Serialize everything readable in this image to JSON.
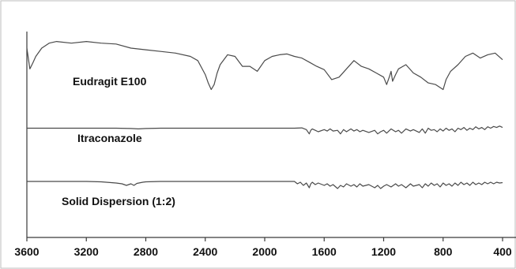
{
  "chart_data": {
    "type": "line",
    "title": "",
    "xlabel": "",
    "ylabel": "",
    "x_reversed": true,
    "xlim": [
      3600,
      400
    ],
    "x_ticks": [
      3600,
      3200,
      2800,
      2400,
      2000,
      1600,
      1200,
      800,
      400
    ],
    "grid": false,
    "legend": "none",
    "series": [
      {
        "name": "Eudragit E100",
        "x": [
          3600,
          3580,
          3560,
          3540,
          3500,
          3450,
          3400,
          3300,
          3200,
          3100,
          3000,
          2900,
          2800,
          2700,
          2600,
          2500,
          2450,
          2400,
          2380,
          2360,
          2340,
          2320,
          2300,
          2250,
          2200,
          2150,
          2100,
          2050,
          2000,
          1950,
          1900,
          1850,
          1800,
          1750,
          1700,
          1650,
          1600,
          1550,
          1500,
          1450,
          1400,
          1350,
          1300,
          1250,
          1200,
          1180,
          1160,
          1150,
          1140,
          1120,
          1100,
          1050,
          1000,
          950,
          900,
          850,
          800,
          780,
          750,
          700,
          650,
          600,
          550,
          500,
          450,
          400
        ],
        "y": [
          0.8,
          0.55,
          0.62,
          0.7,
          0.8,
          0.86,
          0.88,
          0.86,
          0.88,
          0.86,
          0.85,
          0.8,
          0.78,
          0.76,
          0.74,
          0.7,
          0.65,
          0.48,
          0.38,
          0.3,
          0.36,
          0.5,
          0.6,
          0.72,
          0.7,
          0.58,
          0.58,
          0.52,
          0.65,
          0.7,
          0.72,
          0.73,
          0.7,
          0.68,
          0.63,
          0.58,
          0.54,
          0.42,
          0.45,
          0.55,
          0.65,
          0.58,
          0.55,
          0.5,
          0.45,
          0.36,
          0.46,
          0.52,
          0.4,
          0.48,
          0.55,
          0.6,
          0.5,
          0.45,
          0.38,
          0.36,
          0.3,
          0.42,
          0.52,
          0.6,
          0.7,
          0.74,
          0.68,
          0.72,
          0.74,
          0.66
        ]
      },
      {
        "name": "Itraconazole",
        "x": [
          3600,
          3400,
          3200,
          3000,
          2900,
          2850,
          2800,
          2700,
          2600,
          2400,
          2200,
          2000,
          1800,
          1750,
          1720,
          1700,
          1690,
          1680,
          1660,
          1640,
          1600,
          1580,
          1560,
          1540,
          1510,
          1490,
          1470,
          1450,
          1420,
          1400,
          1380,
          1360,
          1340,
          1300,
          1260,
          1240,
          1220,
          1200,
          1180,
          1150,
          1120,
          1100,
          1080,
          1050,
          1020,
          1000,
          960,
          940,
          920,
          900,
          880,
          860,
          840,
          820,
          800,
          780,
          760,
          740,
          720,
          700,
          680,
          660,
          640,
          620,
          600,
          580,
          560,
          540,
          520,
          500,
          480,
          460,
          440,
          420,
          400
        ],
        "y": [
          0.5,
          0.5,
          0.5,
          0.5,
          0.49,
          0.48,
          0.49,
          0.5,
          0.5,
          0.5,
          0.5,
          0.5,
          0.5,
          0.51,
          0.46,
          0.34,
          0.44,
          0.48,
          0.44,
          0.4,
          0.46,
          0.42,
          0.48,
          0.42,
          0.44,
          0.34,
          0.46,
          0.4,
          0.48,
          0.42,
          0.46,
          0.4,
          0.44,
          0.38,
          0.44,
          0.34,
          0.4,
          0.44,
          0.36,
          0.48,
          0.4,
          0.44,
          0.36,
          0.48,
          0.42,
          0.46,
          0.38,
          0.48,
          0.36,
          0.5,
          0.44,
          0.46,
          0.4,
          0.48,
          0.42,
          0.5,
          0.44,
          0.48,
          0.4,
          0.5,
          0.46,
          0.52,
          0.44,
          0.5,
          0.46,
          0.54,
          0.48,
          0.52,
          0.46,
          0.54,
          0.5,
          0.55,
          0.52,
          0.56,
          0.52
        ]
      },
      {
        "name": "Solid Dispersion (1:2)",
        "x": [
          3600,
          3400,
          3200,
          3100,
          3000,
          2960,
          2930,
          2900,
          2880,
          2860,
          2820,
          2800,
          2700,
          2600,
          2400,
          2200,
          2000,
          1800,
          1780,
          1760,
          1740,
          1720,
          1700,
          1690,
          1680,
          1660,
          1640,
          1600,
          1580,
          1560,
          1540,
          1510,
          1490,
          1470,
          1450,
          1420,
          1400,
          1380,
          1360,
          1340,
          1300,
          1260,
          1240,
          1220,
          1200,
          1180,
          1150,
          1120,
          1100,
          1080,
          1050,
          1020,
          1000,
          960,
          940,
          920,
          900,
          880,
          860,
          840,
          820,
          800,
          780,
          760,
          740,
          720,
          700,
          680,
          660,
          640,
          620,
          600,
          580,
          560,
          540,
          520,
          500,
          480,
          460,
          440,
          420,
          400
        ],
        "y": [
          0.3,
          0.3,
          0.3,
          0.29,
          0.26,
          0.24,
          0.2,
          0.24,
          0.2,
          0.25,
          0.28,
          0.29,
          0.3,
          0.3,
          0.3,
          0.3,
          0.3,
          0.3,
          0.24,
          0.28,
          0.2,
          0.26,
          0.14,
          0.24,
          0.28,
          0.22,
          0.26,
          0.2,
          0.24,
          0.18,
          0.22,
          0.12,
          0.2,
          0.16,
          0.24,
          0.18,
          0.22,
          0.16,
          0.24,
          0.18,
          0.22,
          0.14,
          0.2,
          0.12,
          0.18,
          0.22,
          0.16,
          0.24,
          0.18,
          0.22,
          0.14,
          0.24,
          0.18,
          0.22,
          0.14,
          0.24,
          0.18,
          0.26,
          0.2,
          0.24,
          0.16,
          0.26,
          0.2,
          0.24,
          0.18,
          0.26,
          0.2,
          0.28,
          0.22,
          0.26,
          0.2,
          0.28,
          0.22,
          0.26,
          0.22,
          0.28,
          0.24,
          0.28,
          0.24,
          0.28,
          0.26,
          0.27
        ]
      }
    ]
  }
}
